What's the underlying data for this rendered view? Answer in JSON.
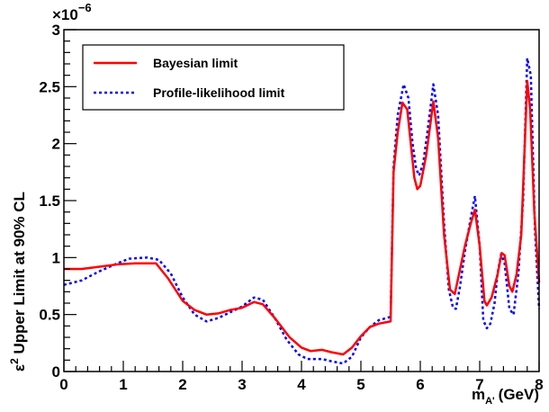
{
  "chart_data": {
    "type": "line",
    "title": "",
    "xlabel": "m",
    "xlabel_subscript": "A'",
    "xlabel_unit": "(GeV)",
    "ylabel_prefix": "ε",
    "ylabel_power": "2",
    "ylabel_rest": " Upper Limit at 90% CL",
    "y_multiplier_base": "×10",
    "y_multiplier_exp": "−6",
    "xlim": [
      0,
      8
    ],
    "ylim": [
      0,
      3
    ],
    "x_ticks": [
      0,
      1,
      2,
      3,
      4,
      5,
      6,
      7,
      8
    ],
    "x_tick_labels": [
      "0",
      "1",
      "2",
      "3",
      "4",
      "5",
      "6",
      "7",
      "8"
    ],
    "y_ticks": [
      0,
      0.5,
      1,
      1.5,
      2,
      2.5,
      3
    ],
    "y_tick_labels": [
      "0",
      "0.5",
      "1",
      "1.5",
      "2",
      "2.5",
      "3"
    ],
    "grid": false,
    "legend_position": "top-left",
    "series": [
      {
        "name": "Bayesian limit",
        "color": "#ff0000",
        "style": "solid",
        "points": [
          [
            0,
            0.9
          ],
          [
            0.3,
            0.9
          ],
          [
            0.6,
            0.92
          ],
          [
            0.9,
            0.94
          ],
          [
            1.2,
            0.95
          ],
          [
            1.55,
            0.95
          ],
          [
            1.75,
            0.82
          ],
          [
            2.0,
            0.62
          ],
          [
            2.2,
            0.54
          ],
          [
            2.4,
            0.5
          ],
          [
            2.6,
            0.51
          ],
          [
            2.8,
            0.54
          ],
          [
            3.0,
            0.56
          ],
          [
            3.2,
            0.61
          ],
          [
            3.35,
            0.59
          ],
          [
            3.55,
            0.47
          ],
          [
            3.8,
            0.3
          ],
          [
            4.0,
            0.21
          ],
          [
            4.15,
            0.18
          ],
          [
            4.35,
            0.19
          ],
          [
            4.5,
            0.17
          ],
          [
            4.7,
            0.15
          ],
          [
            4.85,
            0.21
          ],
          [
            5.0,
            0.31
          ],
          [
            5.15,
            0.39
          ],
          [
            5.3,
            0.42
          ],
          [
            5.4,
            0.43
          ],
          [
            5.5,
            0.44
          ],
          [
            5.55,
            1.75
          ],
          [
            5.62,
            2.1
          ],
          [
            5.7,
            2.36
          ],
          [
            5.78,
            2.3
          ],
          [
            5.85,
            1.95
          ],
          [
            5.9,
            1.7
          ],
          [
            5.95,
            1.6
          ],
          [
            6.0,
            1.63
          ],
          [
            6.1,
            1.9
          ],
          [
            6.22,
            2.37
          ],
          [
            6.3,
            2.05
          ],
          [
            6.4,
            1.2
          ],
          [
            6.5,
            0.72
          ],
          [
            6.58,
            0.68
          ],
          [
            6.65,
            0.85
          ],
          [
            6.75,
            1.1
          ],
          [
            6.85,
            1.3
          ],
          [
            6.92,
            1.42
          ],
          [
            7.0,
            1.1
          ],
          [
            7.08,
            0.62
          ],
          [
            7.12,
            0.58
          ],
          [
            7.2,
            0.65
          ],
          [
            7.3,
            0.85
          ],
          [
            7.37,
            1.04
          ],
          [
            7.42,
            1.02
          ],
          [
            7.5,
            0.75
          ],
          [
            7.55,
            0.7
          ],
          [
            7.62,
            0.85
          ],
          [
            7.7,
            1.2
          ],
          [
            7.8,
            2.55
          ],
          [
            7.85,
            2.3
          ],
          [
            7.92,
            1.4
          ],
          [
            8.0,
            0.78
          ]
        ]
      },
      {
        "name": "Profile-likelihood limit",
        "color": "#0000ff",
        "style": "dotted",
        "points": [
          [
            0,
            0.76
          ],
          [
            0.3,
            0.8
          ],
          [
            0.6,
            0.88
          ],
          [
            0.9,
            0.95
          ],
          [
            1.1,
            0.99
          ],
          [
            1.4,
            1.0
          ],
          [
            1.6,
            0.98
          ],
          [
            1.8,
            0.86
          ],
          [
            2.0,
            0.65
          ],
          [
            2.2,
            0.5
          ],
          [
            2.4,
            0.44
          ],
          [
            2.6,
            0.47
          ],
          [
            2.8,
            0.52
          ],
          [
            3.0,
            0.57
          ],
          [
            3.2,
            0.65
          ],
          [
            3.35,
            0.63
          ],
          [
            3.55,
            0.47
          ],
          [
            3.75,
            0.28
          ],
          [
            3.95,
            0.15
          ],
          [
            4.1,
            0.11
          ],
          [
            4.35,
            0.11
          ],
          [
            4.5,
            0.09
          ],
          [
            4.7,
            0.07
          ],
          [
            4.85,
            0.13
          ],
          [
            5.0,
            0.3
          ],
          [
            5.15,
            0.39
          ],
          [
            5.3,
            0.45
          ],
          [
            5.5,
            0.48
          ],
          [
            5.55,
            1.8
          ],
          [
            5.62,
            2.25
          ],
          [
            5.72,
            2.52
          ],
          [
            5.8,
            2.4
          ],
          [
            5.87,
            2.0
          ],
          [
            5.93,
            1.78
          ],
          [
            5.98,
            1.72
          ],
          [
            6.05,
            1.83
          ],
          [
            6.12,
            2.1
          ],
          [
            6.22,
            2.52
          ],
          [
            6.3,
            2.25
          ],
          [
            6.4,
            1.3
          ],
          [
            6.48,
            0.72
          ],
          [
            6.55,
            0.56
          ],
          [
            6.6,
            0.55
          ],
          [
            6.67,
            0.75
          ],
          [
            6.75,
            1.05
          ],
          [
            6.85,
            1.35
          ],
          [
            6.92,
            1.54
          ],
          [
            7.0,
            1.1
          ],
          [
            7.06,
            0.45
          ],
          [
            7.12,
            0.38
          ],
          [
            7.18,
            0.42
          ],
          [
            7.25,
            0.6
          ],
          [
            7.3,
            0.86
          ],
          [
            7.36,
            1.03
          ],
          [
            7.42,
            0.95
          ],
          [
            7.5,
            0.55
          ],
          [
            7.57,
            0.5
          ],
          [
            7.65,
            0.85
          ],
          [
            7.73,
            1.5
          ],
          [
            7.8,
            2.75
          ],
          [
            7.86,
            2.6
          ],
          [
            7.93,
            1.25
          ],
          [
            8.0,
            0.55
          ]
        ]
      }
    ]
  }
}
